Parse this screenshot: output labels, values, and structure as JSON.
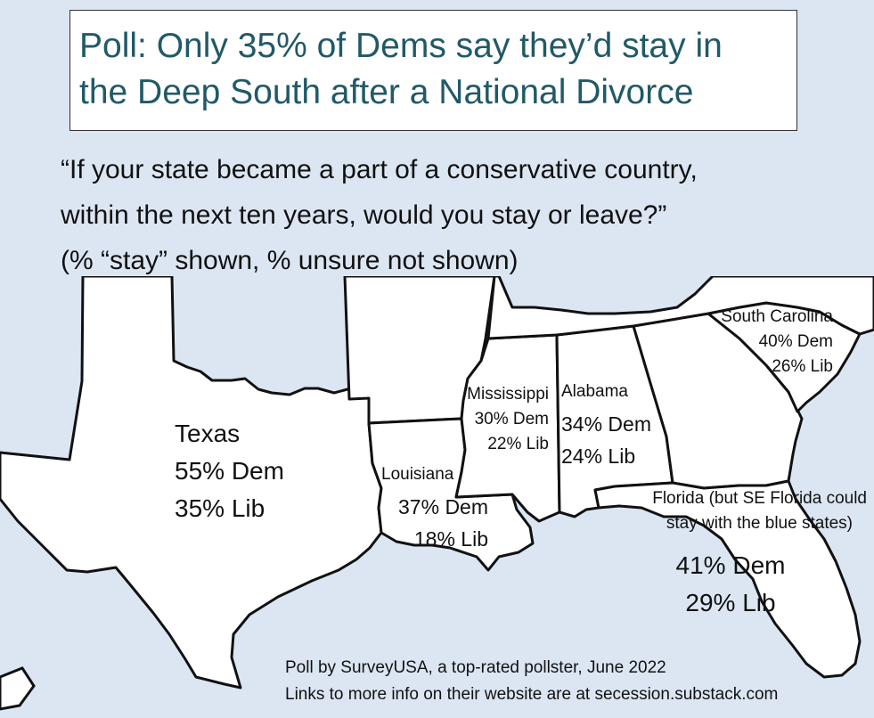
{
  "title": {
    "line1": "Poll: Only 35% of Dems say they’d stay in",
    "line2": "the Deep South after a National Divorce"
  },
  "question": {
    "line1": "“If your state became a part of a conservative country,",
    "line2": "within the next ten years, would you stay or leave?”",
    "note": "(% “stay” shown, % unsure not shown)"
  },
  "states": {
    "texas": {
      "name": "Texas",
      "dem": "55% Dem",
      "lib": "35% Lib",
      "dem_value": 55,
      "lib_value": 35
    },
    "louisiana": {
      "name": "Louisiana",
      "dem": "37% Dem",
      "lib": "18% Lib",
      "dem_value": 37,
      "lib_value": 18
    },
    "mississippi": {
      "name": "Mississippi",
      "dem": "30% Dem",
      "lib": "22% Lib",
      "dem_value": 30,
      "lib_value": 22
    },
    "alabama": {
      "name": "Alabama",
      "dem": "34% Dem",
      "lib": "24% Lib",
      "dem_value": 34,
      "lib_value": 24
    },
    "south_carolina": {
      "name": "South Carolina",
      "dem": "40% Dem",
      "lib": "26% Lib",
      "dem_value": 40,
      "lib_value": 26
    },
    "florida": {
      "name_line1": "Florida (but SE Florida could",
      "name_line2": "stay with the blue states)",
      "dem": "41% Dem",
      "lib": "29% Lib",
      "dem_value": 41,
      "lib_value": 29
    }
  },
  "source": {
    "line1": "Poll by SurveyUSA, a top-rated pollster, June 2022",
    "line2": "Links to more info on their website are at secession.substack.com"
  },
  "colors": {
    "title_text": "#215968",
    "background": "#dce6f2",
    "land": "#ffffff",
    "border": "#111111"
  }
}
